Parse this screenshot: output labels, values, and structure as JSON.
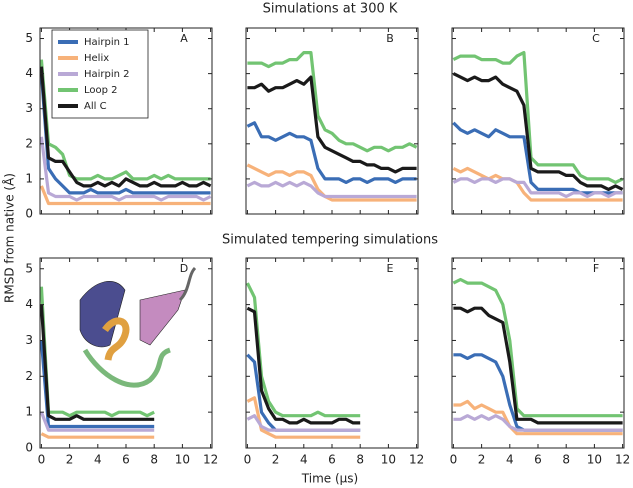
{
  "row_titles": [
    "Simulations at 300 K",
    "Simulated tempering simulations"
  ],
  "y_label": "RMSD from native (Å)",
  "x_label": "Time (μs)",
  "chart_data": [
    {
      "type": "line",
      "label": "A",
      "legend": "upper left",
      "x": [
        0,
        0.5,
        1,
        1.5,
        2,
        2.5,
        3,
        3.5,
        4,
        4.5,
        5,
        5.5,
        6,
        6.5,
        7,
        7.5,
        8,
        8.5,
        9,
        9.5,
        10,
        10.5,
        11,
        11.5,
        12
      ],
      "xlim": [
        -0.1,
        12.1
      ],
      "ylim": [
        0,
        5.3
      ],
      "xticks": [
        0,
        2,
        4,
        6,
        8,
        10,
        12
      ],
      "yticks": [
        0,
        1,
        2,
        3,
        4,
        5
      ],
      "series": [
        {
          "name": "Hairpin 1",
          "color": "#3a6db5",
          "values": [
            4.0,
            1.3,
            1.0,
            0.8,
            0.6,
            0.6,
            0.6,
            0.7,
            0.6,
            0.6,
            0.6,
            0.6,
            0.7,
            0.6,
            0.6,
            0.6,
            0.6,
            0.6,
            0.6,
            0.6,
            0.6,
            0.6,
            0.6,
            0.6,
            0.6
          ]
        },
        {
          "name": "Helix",
          "color": "#f7b27a",
          "values": [
            0.8,
            0.3,
            0.3,
            0.3,
            0.3,
            0.3,
            0.3,
            0.3,
            0.3,
            0.3,
            0.3,
            0.3,
            0.3,
            0.3,
            0.3,
            0.3,
            0.3,
            0.3,
            0.3,
            0.3,
            0.3,
            0.3,
            0.3,
            0.3,
            0.3
          ]
        },
        {
          "name": "Hairpin 2",
          "color": "#b9a9d6",
          "values": [
            2.2,
            0.6,
            0.5,
            0.5,
            0.5,
            0.4,
            0.5,
            0.5,
            0.5,
            0.5,
            0.5,
            0.4,
            0.5,
            0.5,
            0.5,
            0.5,
            0.5,
            0.4,
            0.5,
            0.5,
            0.5,
            0.5,
            0.5,
            0.4,
            0.5
          ]
        },
        {
          "name": "Loop 2",
          "color": "#72c472",
          "values": [
            4.4,
            2.0,
            1.9,
            1.7,
            1.1,
            1.0,
            1.0,
            1.0,
            1.1,
            1.0,
            1.0,
            1.1,
            1.2,
            1.0,
            1.0,
            1.0,
            1.1,
            1.0,
            1.1,
            1.0,
            1.0,
            1.0,
            1.0,
            1.0,
            1.0
          ]
        },
        {
          "name": "All C",
          "color": "#1a1a1a",
          "values": [
            4.2,
            1.6,
            1.5,
            1.5,
            1.2,
            0.9,
            0.8,
            0.8,
            0.9,
            0.8,
            0.9,
            0.8,
            1.0,
            0.9,
            0.8,
            0.8,
            0.9,
            0.8,
            0.8,
            0.8,
            0.9,
            0.8,
            0.8,
            0.9,
            0.8
          ]
        }
      ]
    },
    {
      "type": "line",
      "label": "B",
      "x": [
        0,
        0.5,
        1,
        1.5,
        2,
        2.5,
        3,
        3.5,
        4,
        4.5,
        5,
        5.5,
        6,
        6.5,
        7,
        7.5,
        8,
        8.5,
        9,
        9.5,
        10,
        10.5,
        11,
        11.5,
        12
      ],
      "xlim": [
        -0.1,
        12.1
      ],
      "ylim": [
        0,
        5.3
      ],
      "xticks": [
        0,
        2,
        4,
        6,
        8,
        10,
        12
      ],
      "yticks": [
        0,
        1,
        2,
        3,
        4,
        5
      ],
      "series": [
        {
          "name": "Hairpin 1",
          "color": "#3a6db5",
          "values": [
            2.5,
            2.6,
            2.2,
            2.2,
            2.1,
            2.2,
            2.3,
            2.2,
            2.2,
            2.1,
            1.3,
            1.0,
            1.0,
            1.0,
            0.9,
            1.0,
            1.0,
            0.9,
            1.0,
            1.0,
            1.0,
            0.9,
            1.0,
            1.0,
            1.0
          ]
        },
        {
          "name": "Helix",
          "color": "#f7b27a",
          "values": [
            1.4,
            1.3,
            1.2,
            1.1,
            1.2,
            1.2,
            1.1,
            1.2,
            1.2,
            1.1,
            0.7,
            0.5,
            0.4,
            0.4,
            0.4,
            0.4,
            0.4,
            0.4,
            0.4,
            0.4,
            0.4,
            0.4,
            0.4,
            0.4,
            0.4
          ]
        },
        {
          "name": "Hairpin 2",
          "color": "#b9a9d6",
          "values": [
            0.8,
            0.9,
            0.8,
            0.8,
            0.9,
            0.8,
            0.9,
            0.8,
            0.9,
            0.8,
            0.6,
            0.5,
            0.5,
            0.5,
            0.5,
            0.5,
            0.5,
            0.5,
            0.5,
            0.5,
            0.5,
            0.5,
            0.5,
            0.5,
            0.5
          ]
        },
        {
          "name": "Loop 2",
          "color": "#72c472",
          "values": [
            4.3,
            4.3,
            4.3,
            4.2,
            4.3,
            4.3,
            4.4,
            4.4,
            4.6,
            4.6,
            2.8,
            2.4,
            2.3,
            2.1,
            2.0,
            2.0,
            1.9,
            1.8,
            1.9,
            1.9,
            1.8,
            1.9,
            1.9,
            2.0,
            1.9
          ]
        },
        {
          "name": "All C",
          "color": "#1a1a1a",
          "values": [
            3.6,
            3.6,
            3.7,
            3.5,
            3.6,
            3.6,
            3.7,
            3.8,
            3.7,
            3.9,
            2.2,
            1.9,
            1.8,
            1.7,
            1.6,
            1.5,
            1.5,
            1.4,
            1.4,
            1.3,
            1.3,
            1.2,
            1.3,
            1.3,
            1.3
          ]
        }
      ]
    },
    {
      "type": "line",
      "label": "C",
      "x": [
        0,
        0.5,
        1,
        1.5,
        2,
        2.5,
        3,
        3.5,
        4,
        4.5,
        5,
        5.5,
        6,
        6.5,
        7,
        7.5,
        8,
        8.5,
        9,
        9.5,
        10,
        10.5,
        11,
        11.5,
        12
      ],
      "xlim": [
        -0.1,
        12.1
      ],
      "ylim": [
        0,
        5.3
      ],
      "xticks": [
        0,
        2,
        4,
        6,
        8,
        10,
        12
      ],
      "yticks": [
        0,
        1,
        2,
        3,
        4,
        5
      ],
      "series": [
        {
          "name": "Hairpin 1",
          "color": "#3a6db5",
          "values": [
            2.6,
            2.4,
            2.3,
            2.4,
            2.3,
            2.2,
            2.4,
            2.3,
            2.2,
            2.2,
            2.2,
            0.9,
            0.7,
            0.7,
            0.7,
            0.7,
            0.7,
            0.7,
            0.6,
            0.6,
            0.6,
            0.6,
            0.6,
            0.6,
            0.6
          ]
        },
        {
          "name": "Helix",
          "color": "#f7b27a",
          "values": [
            1.3,
            1.2,
            1.3,
            1.2,
            1.1,
            1.0,
            1.1,
            1.0,
            1.0,
            0.9,
            0.6,
            0.4,
            0.4,
            0.4,
            0.4,
            0.4,
            0.4,
            0.4,
            0.4,
            0.4,
            0.4,
            0.4,
            0.4,
            0.4,
            0.4
          ]
        },
        {
          "name": "Hairpin 2",
          "color": "#b9a9d6",
          "values": [
            0.9,
            1.0,
            1.0,
            0.9,
            1.0,
            1.0,
            0.9,
            1.0,
            1.0,
            0.9,
            0.9,
            0.6,
            0.6,
            0.6,
            0.6,
            0.6,
            0.5,
            0.6,
            0.6,
            0.5,
            0.6,
            0.6,
            0.5,
            0.6,
            0.6
          ]
        },
        {
          "name": "Loop 2",
          "color": "#72c472",
          "values": [
            4.4,
            4.5,
            4.5,
            4.5,
            4.4,
            4.4,
            4.4,
            4.3,
            4.3,
            4.5,
            4.6,
            1.6,
            1.4,
            1.4,
            1.4,
            1.4,
            1.4,
            1.4,
            1.1,
            1.0,
            1.0,
            1.0,
            1.0,
            0.9,
            1.0
          ]
        },
        {
          "name": "All C",
          "color": "#1a1a1a",
          "values": [
            4.0,
            3.9,
            3.8,
            3.9,
            3.8,
            3.8,
            3.9,
            3.7,
            3.6,
            3.5,
            3.1,
            1.3,
            1.2,
            1.2,
            1.2,
            1.2,
            1.1,
            1.1,
            0.9,
            0.8,
            0.8,
            0.8,
            0.7,
            0.8,
            0.7
          ]
        }
      ]
    },
    {
      "type": "line",
      "label": "D",
      "x": [
        0,
        0.5,
        1,
        1.5,
        2,
        2.5,
        3,
        3.5,
        4,
        4.5,
        5,
        5.5,
        6,
        6.5,
        7,
        7.5,
        8
      ],
      "xlim": [
        -0.1,
        12.1
      ],
      "ylim": [
        0,
        5.3
      ],
      "xticks": [
        0,
        2,
        4,
        6,
        8,
        10,
        12
      ],
      "yticks": [
        0,
        1,
        2,
        3,
        4,
        5
      ],
      "series": [
        {
          "name": "Hairpin 1",
          "color": "#3a6db5",
          "values": [
            3.0,
            0.6,
            0.6,
            0.6,
            0.6,
            0.6,
            0.6,
            0.6,
            0.6,
            0.6,
            0.6,
            0.6,
            0.6,
            0.6,
            0.6,
            0.6,
            0.6
          ]
        },
        {
          "name": "Helix",
          "color": "#f7b27a",
          "values": [
            0.4,
            0.3,
            0.3,
            0.3,
            0.3,
            0.3,
            0.3,
            0.3,
            0.3,
            0.3,
            0.3,
            0.3,
            0.3,
            0.3,
            0.3,
            0.3,
            0.3
          ]
        },
        {
          "name": "Hairpin 2",
          "color": "#b9a9d6",
          "values": [
            1.0,
            0.5,
            0.5,
            0.5,
            0.5,
            0.5,
            0.5,
            0.5,
            0.5,
            0.5,
            0.5,
            0.5,
            0.5,
            0.5,
            0.5,
            0.5,
            0.5
          ]
        },
        {
          "name": "Loop 2",
          "color": "#72c472",
          "values": [
            4.5,
            1.0,
            1.0,
            1.0,
            0.9,
            1.0,
            1.0,
            1.0,
            1.0,
            1.0,
            0.9,
            1.0,
            1.0,
            1.0,
            1.0,
            0.9,
            1.0
          ]
        },
        {
          "name": "All C",
          "color": "#1a1a1a",
          "values": [
            4.0,
            0.9,
            0.8,
            0.8,
            0.8,
            0.9,
            0.8,
            0.8,
            0.8,
            0.8,
            0.8,
            0.8,
            0.8,
            0.8,
            0.8,
            0.8,
            0.8
          ]
        }
      ]
    },
    {
      "type": "line",
      "label": "E",
      "x": [
        0,
        0.5,
        1,
        1.5,
        2,
        2.5,
        3,
        3.5,
        4,
        4.5,
        5,
        5.5,
        6,
        6.5,
        7,
        7.5,
        8
      ],
      "xlim": [
        -0.1,
        12.1
      ],
      "ylim": [
        0,
        5.3
      ],
      "xticks": [
        0,
        2,
        4,
        6,
        8,
        10,
        12
      ],
      "yticks": [
        0,
        1,
        2,
        3,
        4,
        5
      ],
      "series": [
        {
          "name": "Hairpin 1",
          "color": "#3a6db5",
          "values": [
            2.6,
            2.4,
            1.0,
            0.7,
            0.5,
            0.5,
            0.5,
            0.5,
            0.5,
            0.5,
            0.5,
            0.5,
            0.5,
            0.5,
            0.5,
            0.5,
            0.5
          ]
        },
        {
          "name": "Helix",
          "color": "#f7b27a",
          "values": [
            1.3,
            1.4,
            0.5,
            0.4,
            0.3,
            0.3,
            0.3,
            0.3,
            0.3,
            0.3,
            0.3,
            0.3,
            0.3,
            0.3,
            0.3,
            0.3,
            0.3
          ]
        },
        {
          "name": "Hairpin 2",
          "color": "#b9a9d6",
          "values": [
            0.8,
            0.9,
            0.6,
            0.5,
            0.5,
            0.5,
            0.5,
            0.5,
            0.5,
            0.5,
            0.5,
            0.5,
            0.5,
            0.5,
            0.5,
            0.5,
            0.5
          ]
        },
        {
          "name": "Loop 2",
          "color": "#72c472",
          "values": [
            4.6,
            4.2,
            2.0,
            1.3,
            1.0,
            0.9,
            0.9,
            0.9,
            0.9,
            0.9,
            1.0,
            0.9,
            0.9,
            0.9,
            0.9,
            0.9,
            0.9
          ]
        },
        {
          "name": "All C",
          "color": "#1a1a1a",
          "values": [
            3.9,
            3.8,
            1.6,
            1.1,
            0.8,
            0.8,
            0.7,
            0.7,
            0.8,
            0.7,
            0.7,
            0.7,
            0.7,
            0.8,
            0.8,
            0.7,
            0.7
          ]
        }
      ]
    },
    {
      "type": "line",
      "label": "F",
      "x": [
        0,
        0.5,
        1,
        1.5,
        2,
        2.5,
        3,
        3.5,
        4,
        4.5,
        5,
        5.5,
        6,
        6.5,
        7,
        7.5,
        8,
        8.5,
        9,
        9.5,
        10,
        10.5,
        11,
        11.5,
        12
      ],
      "xlim": [
        -0.1,
        12.1
      ],
      "ylim": [
        0,
        5.3
      ],
      "xticks": [
        0,
        2,
        4,
        6,
        8,
        10,
        12
      ],
      "yticks": [
        0,
        1,
        2,
        3,
        4,
        5
      ],
      "series": [
        {
          "name": "Hairpin 1",
          "color": "#3a6db5",
          "values": [
            2.6,
            2.6,
            2.5,
            2.6,
            2.6,
            2.5,
            2.4,
            2.0,
            1.2,
            0.6,
            0.5,
            0.5,
            0.5,
            0.5,
            0.5,
            0.5,
            0.5,
            0.5,
            0.5,
            0.5,
            0.5,
            0.5,
            0.5,
            0.5,
            0.5
          ]
        },
        {
          "name": "Helix",
          "color": "#f7b27a",
          "values": [
            1.2,
            1.2,
            1.3,
            1.1,
            1.2,
            1.1,
            1.0,
            1.0,
            0.6,
            0.4,
            0.4,
            0.4,
            0.4,
            0.4,
            0.4,
            0.4,
            0.4,
            0.4,
            0.4,
            0.4,
            0.4,
            0.4,
            0.4,
            0.4,
            0.4
          ]
        },
        {
          "name": "Hairpin 2",
          "color": "#b9a9d6",
          "values": [
            0.8,
            0.8,
            0.9,
            0.8,
            0.9,
            0.8,
            0.9,
            0.8,
            0.6,
            0.5,
            0.5,
            0.5,
            0.5,
            0.5,
            0.5,
            0.5,
            0.5,
            0.5,
            0.5,
            0.5,
            0.5,
            0.5,
            0.5,
            0.5,
            0.5
          ]
        },
        {
          "name": "Loop 2",
          "color": "#72c472",
          "values": [
            4.6,
            4.7,
            4.6,
            4.6,
            4.6,
            4.5,
            4.4,
            4.0,
            3.0,
            1.1,
            0.9,
            0.9,
            0.9,
            0.9,
            0.9,
            0.9,
            0.9,
            0.9,
            0.9,
            0.9,
            0.9,
            0.9,
            0.9,
            0.9,
            0.9
          ]
        },
        {
          "name": "All C",
          "color": "#1a1a1a",
          "values": [
            3.9,
            3.9,
            3.8,
            3.9,
            3.9,
            3.7,
            3.6,
            3.5,
            2.4,
            0.8,
            0.8,
            0.8,
            0.7,
            0.7,
            0.7,
            0.7,
            0.7,
            0.7,
            0.7,
            0.7,
            0.7,
            0.7,
            0.7,
            0.7,
            0.7
          ]
        }
      ]
    }
  ]
}
